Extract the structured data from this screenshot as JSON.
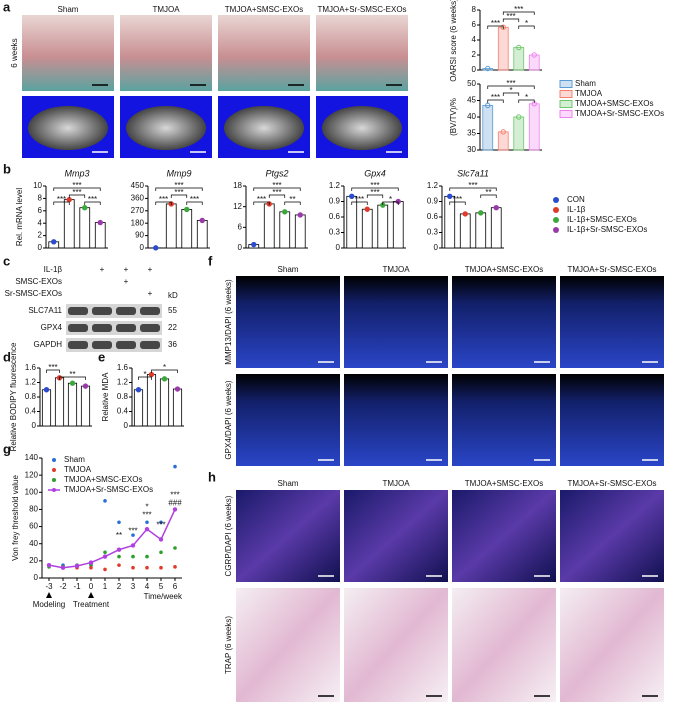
{
  "panel_labels": [
    "a",
    "b",
    "c",
    "d",
    "e",
    "f",
    "g",
    "h"
  ],
  "panel_a": {
    "groups": [
      "Sham",
      "TMJOA",
      "TMJOA+SMSC-EXOs",
      "TMJOA+Sr-SMSC-EXOs"
    ],
    "row_label": "6 weeks"
  },
  "panel_c": {
    "treatments": [
      {
        "label": "IL-1β",
        "marks": [
          null,
          "+",
          "+",
          "+"
        ]
      },
      {
        "label": "SMSC-EXOs",
        "marks": [
          null,
          null,
          "+",
          null
        ]
      },
      {
        "label": "Sr-SMSC-EXOs",
        "marks": [
          null,
          null,
          null,
          "+"
        ]
      }
    ],
    "unit": "kD",
    "bands": [
      {
        "name": "SLC7A11",
        "kd": 55
      },
      {
        "name": "GPX4",
        "kd": 22
      },
      {
        "name": "GAPDH",
        "kd": 36
      }
    ]
  },
  "panel_f": {
    "groups": [
      "Sham",
      "TMJOA",
      "TMJOA+SMSC-EXOs",
      "TMJOA+Sr-SMSC-EXOs"
    ],
    "rows": [
      "MMP13/DAPI (6 weeks)",
      "GPX4/DAPI (6 weeks)"
    ]
  },
  "panel_h": {
    "groups": [
      "Sham",
      "TMJOA",
      "TMJOA+SMSC-EXOs",
      "TMJOA+Sr-SMSC-EXOs"
    ],
    "rows": [
      "CGRP/DAPI (6 weeks)",
      "TRAP (6 weeks)"
    ]
  },
  "chart_data": [
    {
      "type": "bar",
      "ylabel": "OARSI score (6 weeks)",
      "categories": [
        "Sham",
        "TMJOA",
        "TMJOA+SMSC-EXOs",
        "TMJOA+Sr-SMSC-EXOs"
      ],
      "values": [
        0.2,
        5.7,
        3.0,
        2.0
      ],
      "colors": [
        "#5b9bd5",
        "#f4806f",
        "#6cc86a",
        "#ee82ee"
      ],
      "bar_style": "tinted",
      "legend": true,
      "ylim": [
        0,
        8
      ],
      "yticks": [
        0,
        2,
        4,
        6,
        8
      ],
      "annotations": [
        "***",
        "***",
        "***",
        "*"
      ]
    },
    {
      "type": "bar",
      "ylabel": "(BV/TV)/%",
      "values": [
        43.5,
        35.5,
        40,
        44
      ],
      "colors": [
        "#5b9bd5",
        "#f4806f",
        "#6cc86a",
        "#ee82ee"
      ],
      "bar_style": "tinted",
      "ylim": [
        30,
        50
      ],
      "yticks": [
        30,
        35,
        40,
        45,
        50
      ],
      "annotations": [
        "***",
        "***",
        "*",
        "*"
      ]
    },
    {
      "type": "bar",
      "title": "Mmp3",
      "ylabel": "Rel. mRNA level",
      "categories": [
        "CON",
        "IL-1β",
        "IL-1β+SMSC-EXOs",
        "IL-1β+Sr-SMSC-EXOs"
      ],
      "values": [
        1,
        7.8,
        6.5,
        4.1
      ],
      "colors": [
        "#2b4bd0",
        "#e03a2a",
        "#3aa83a",
        "#9a3aaa"
      ],
      "bar_style": "outline",
      "legend": true,
      "ylim": [
        0,
        10
      ],
      "yticks": [
        0,
        2,
        4,
        6,
        8,
        10
      ],
      "annotations": [
        "***",
        "***",
        "***",
        "***"
      ]
    },
    {
      "type": "bar",
      "title": "Mmp9",
      "values": [
        1,
        320,
        280,
        200
      ],
      "colors": [
        "#2b4bd0",
        "#e03a2a",
        "#3aa83a",
        "#9a3aaa"
      ],
      "bar_style": "outline",
      "ylim": [
        0,
        450
      ],
      "yticks": [
        0,
        90,
        180,
        270,
        360,
        450
      ],
      "annotations": [
        "***",
        "***",
        "***",
        "***"
      ]
    },
    {
      "type": "bar",
      "title": "Ptgs2",
      "values": [
        1,
        12.8,
        10.5,
        9.6
      ],
      "colors": [
        "#2b4bd0",
        "#e03a2a",
        "#3aa83a",
        "#9a3aaa"
      ],
      "bar_style": "outline",
      "ylim": [
        0,
        18
      ],
      "yticks": [
        0,
        6,
        12,
        18
      ],
      "annotations": [
        "***",
        "***",
        "***",
        "**"
      ]
    },
    {
      "type": "bar",
      "title": "Gpx4",
      "values": [
        1.0,
        0.75,
        0.83,
        0.9
      ],
      "colors": [
        "#2b4bd0",
        "#e03a2a",
        "#3aa83a",
        "#9a3aaa"
      ],
      "bar_style": "outline",
      "ylim": [
        0,
        1.2
      ],
      "yticks": [
        0,
        0.3,
        0.6,
        0.9,
        1.2
      ],
      "annotations": [
        "***",
        "***",
        "***",
        "*"
      ]
    },
    {
      "type": "bar",
      "title": "Slc7a11",
      "values": [
        1.0,
        0.66,
        0.68,
        0.78
      ],
      "colors": [
        "#2b4bd0",
        "#e03a2a",
        "#3aa83a",
        "#9a3aaa"
      ],
      "bar_style": "outline",
      "ylim": [
        0,
        1.2
      ],
      "yticks": [
        0,
        0.3,
        0.6,
        0.9,
        1.2
      ],
      "annotations": [
        "***",
        "***",
        "**"
      ]
    },
    {
      "type": "bar",
      "ylabel": "Relative BODIPY fluorescence",
      "values": [
        1.0,
        1.33,
        1.18,
        1.1
      ],
      "colors": [
        "#2b4bd0",
        "#e03a2a",
        "#3aa83a",
        "#9a3aaa"
      ],
      "bar_style": "outline",
      "ylim": [
        0,
        1.6
      ],
      "yticks": [
        0,
        0.4,
        0.8,
        1.2,
        1.6
      ],
      "annotations": [
        "***",
        "**"
      ]
    },
    {
      "type": "bar",
      "ylabel": "Relative MDA",
      "values": [
        1.0,
        1.42,
        1.3,
        1.02
      ],
      "colors": [
        "#2b4bd0",
        "#e03a2a",
        "#3aa83a",
        "#9a3aaa"
      ],
      "bar_style": "outline",
      "ylim": [
        0,
        1.6
      ],
      "yticks": [
        0,
        0.4,
        0.8,
        1.2,
        1.6
      ],
      "annotations": [
        "*",
        "*"
      ]
    },
    {
      "type": "line",
      "ylabel": "Von frey threshold value",
      "xlabel": "Time/week",
      "notes": [
        "Modeling",
        "Treatment"
      ],
      "x": [
        -3,
        -2,
        -1,
        0,
        1,
        2,
        3,
        4,
        5,
        6
      ],
      "xlim": [
        -3.5,
        6.5
      ],
      "xticks": [
        -3,
        -2,
        -1,
        0,
        1,
        2,
        3,
        4,
        5,
        6
      ],
      "ylim": [
        0,
        140
      ],
      "yticks": [
        0,
        20,
        40,
        60,
        80,
        100,
        120,
        140
      ],
      "legend_corner": "upper left",
      "series": [
        {
          "name": "Sham",
          "color": "#2b6fd6",
          "style": "markers",
          "values": [
            15,
            15,
            15,
            15,
            90,
            65,
            50,
            65,
            65,
            130
          ]
        },
        {
          "name": "TMJOA",
          "color": "#e03a2a",
          "style": "markers",
          "values": [
            15,
            13,
            12,
            12,
            10,
            15,
            12,
            12,
            12,
            13
          ]
        },
        {
          "name": "TMJOA+SMSC-EXOs",
          "color": "#2aa02a",
          "style": "markers",
          "values": [
            13,
            13,
            15,
            16,
            30,
            25,
            25,
            25,
            30,
            35
          ]
        },
        {
          "name": "TMJOA+Sr-SMSC-EXOs",
          "color": "#b040e0",
          "style": "line",
          "values": [
            15,
            12,
            14,
            18,
            25,
            33,
            38,
            57,
            45,
            80
          ]
        }
      ],
      "annotations": [
        "**",
        "***",
        "*",
        "***",
        "***",
        "***",
        "###"
      ]
    }
  ]
}
